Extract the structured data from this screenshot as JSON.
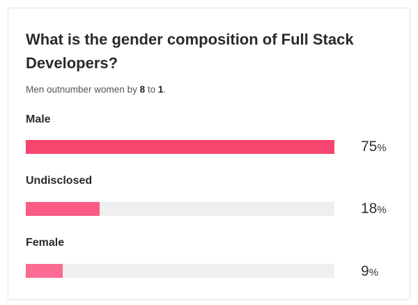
{
  "card": {
    "title": "What is the gender composition of Full Stack Developers?",
    "subtitle_prefix": "Men outnumber women by ",
    "subtitle_a": "8",
    "subtitle_mid": " to ",
    "subtitle_b": "1",
    "subtitle_suffix": "."
  },
  "chart_data": {
    "type": "bar",
    "orientation": "horizontal",
    "title": "What is the gender composition of Full Stack Developers?",
    "subtitle": "Men outnumber women by 8 to 1.",
    "categories": [
      "Male",
      "Undisclosed",
      "Female"
    ],
    "values": [
      75,
      18,
      9
    ],
    "value_suffix": "%",
    "colors": [
      "#f7456f",
      "#fb5b85",
      "#fb6b93"
    ],
    "track_color": "#efefef",
    "xlim": [
      0,
      75
    ],
    "grid": false,
    "legend": "none"
  }
}
